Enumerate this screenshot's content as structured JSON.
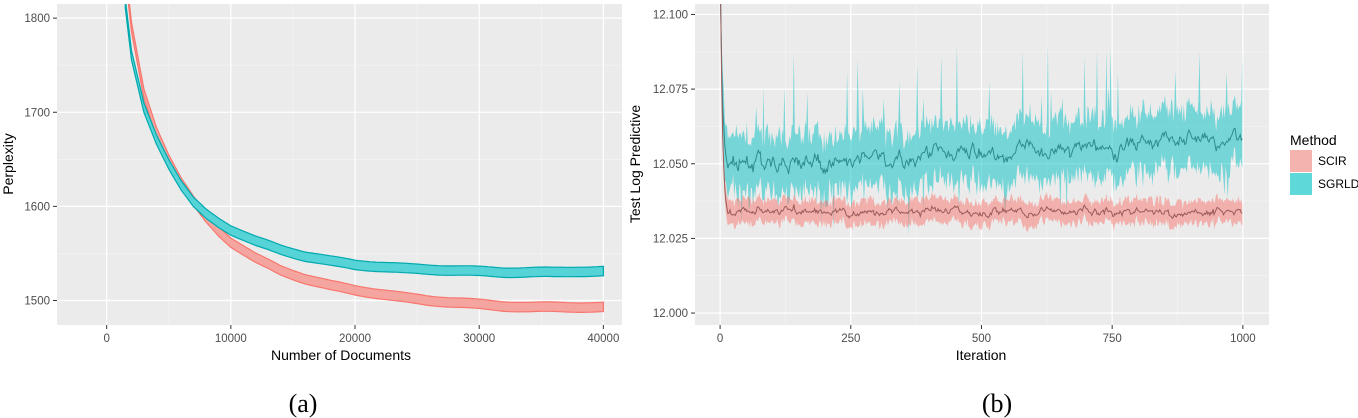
{
  "captions": {
    "a": "(a)",
    "b": "(b)"
  },
  "colors": {
    "panel_bg": "#EBEBEB",
    "grid": "#FFFFFF",
    "SCIR": "#F8766D",
    "SGRLD": "#00BFC4"
  },
  "chart_data": [
    {
      "type": "line",
      "xlabel": "Number of Documents",
      "ylabel": "Perplexity",
      "xlim": [
        -4000,
        41500
      ],
      "ylim": [
        1474,
        1815
      ],
      "xticks": [
        0,
        10000,
        20000,
        30000,
        40000
      ],
      "xtick_labels": [
        "0",
        "10000",
        "20000",
        "30000",
        "40000"
      ],
      "yticks": [
        1500,
        1600,
        1700,
        1800
      ],
      "ytick_labels": [
        "1500",
        "1600",
        "1700",
        "1800"
      ],
      "grid": true,
      "band_halfwidth": 5,
      "x": [
        1500,
        2000,
        3000,
        4000,
        5000,
        6000,
        7000,
        8000,
        9000,
        10000,
        12000,
        14000,
        16000,
        18000,
        20000,
        22000,
        24000,
        26000,
        28000,
        30000,
        32000,
        34000,
        36000,
        38000,
        40000
      ],
      "series": [
        {
          "name": "SCIR",
          "values": [
            1850,
            1790,
            1720,
            1680,
            1650,
            1625,
            1605,
            1588,
            1574,
            1562,
            1545,
            1532,
            1523,
            1516,
            1511,
            1507,
            1503,
            1500,
            1498,
            1496,
            1494,
            1493,
            1493,
            1493,
            1493
          ]
        },
        {
          "name": "SGRLD",
          "values": [
            1815,
            1760,
            1705,
            1672,
            1645,
            1622,
            1604,
            1592,
            1583,
            1575,
            1563,
            1554,
            1547,
            1542,
            1538,
            1536,
            1534,
            1533,
            1532,
            1531,
            1530,
            1530,
            1530,
            1531,
            1531
          ]
        }
      ]
    },
    {
      "type": "line",
      "xlabel": "Iteration",
      "ylabel": "Test Log Predictive",
      "xlim": [
        -48,
        1050
      ],
      "ylim": [
        11.996,
        12.1035
      ],
      "xticks": [
        0,
        250,
        500,
        750,
        1000
      ],
      "xtick_labels": [
        "0",
        "250",
        "500",
        "750",
        "1000"
      ],
      "yticks": [
        12.0,
        12.025,
        12.05,
        12.075,
        12.1
      ],
      "ytick_labels": [
        "12.000",
        "12.025",
        "12.050",
        "12.075",
        "12.100"
      ],
      "grid": true,
      "legend": {
        "title": "Method",
        "placement": "right",
        "entries": [
          "SCIR",
          "SGRLD"
        ]
      },
      "x_start": 1,
      "x_end": 1000,
      "series": [
        {
          "name": "SCIR",
          "initial": 12.105,
          "settles_at": 12.034,
          "noise_mean": 0.0015,
          "band_halfwidth": 0.004
        },
        {
          "name": "SGRLD",
          "initial": 12.105,
          "settles_from": 12.048,
          "settles_to": 12.059,
          "noise_mean": 0.003,
          "band_halfwidth": 0.01
        }
      ]
    }
  ]
}
